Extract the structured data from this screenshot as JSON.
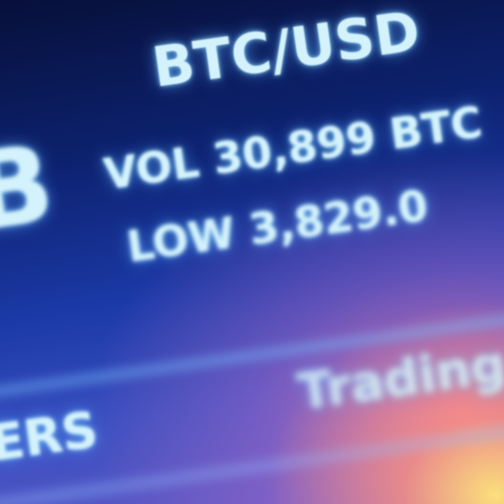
{
  "ticker": {
    "pair": "BTC/USD",
    "volume": "VOL 30,899 BTC",
    "low": "LOW 3,829.0"
  },
  "panel": {
    "label": "Trading"
  },
  "partial": {
    "left": "B",
    "bottom_left": "ERS"
  }
}
